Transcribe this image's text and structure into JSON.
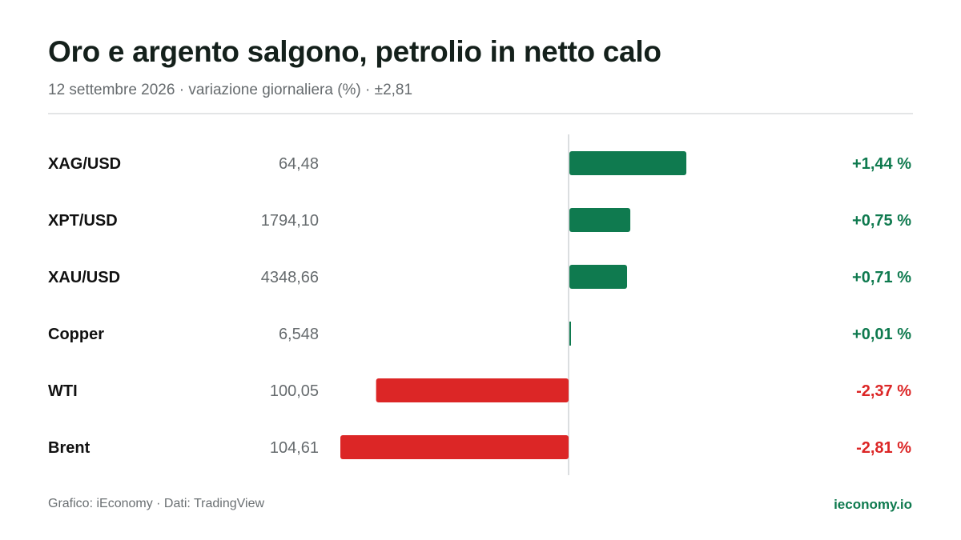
{
  "header": {
    "title": "Oro e argento salgono, petrolio in netto calo",
    "subtitle": "12 settembre 2026 · variazione giornaliera (%) · ±2,81"
  },
  "footer": {
    "source": "Grafico: iEconomy · Dati: TradingView",
    "brand": "ieconomy.io"
  },
  "colors": {
    "positive": "#0f7a4f",
    "negative": "#dc2626",
    "axis": "#cfd3d5"
  },
  "chart_data": {
    "type": "bar",
    "orientation": "horizontal",
    "categories": [
      "XAG/USD",
      "XPT/USD",
      "XAU/USD",
      "Copper",
      "WTI",
      "Brent"
    ],
    "prices": [
      "64,48",
      "1794,10",
      "4348,66",
      "6,548",
      "100,05",
      "104,61"
    ],
    "values": [
      1.44,
      0.75,
      0.71,
      0.01,
      -2.37,
      -2.81
    ],
    "value_labels": [
      "+1,44 %",
      "+0,75 %",
      "+0,71 %",
      "+0,01 %",
      "-2,37 %",
      "-2,81 %"
    ],
    "xlim": [
      -2.81,
      2.81
    ],
    "grid": false,
    "legend": "none"
  }
}
